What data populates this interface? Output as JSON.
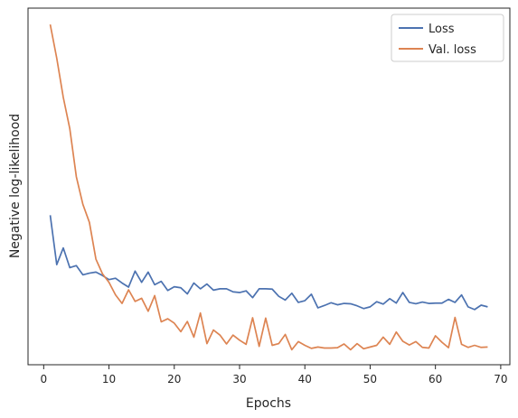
{
  "chart_data": {
    "type": "line",
    "xlabel": "Epochs",
    "ylabel": "Negative log-likelihood",
    "xlim": [
      -2.4,
      71.4
    ],
    "ylim": [
      0,
      1
    ],
    "x_ticks": [
      0,
      10,
      20,
      30,
      40,
      50,
      60,
      70
    ],
    "x_tick_labels": [
      "0",
      "10",
      "20",
      "30",
      "40",
      "50",
      "60",
      "70"
    ],
    "y_ticks_labeled": false,
    "grid": false,
    "legend_position": "top-right",
    "series": [
      {
        "name": "Loss",
        "color": "#4c72b0",
        "x": [
          1,
          2,
          3,
          4,
          5,
          6,
          7,
          8,
          9,
          10,
          11,
          12,
          13,
          14,
          15,
          16,
          17,
          18,
          19,
          20,
          21,
          22,
          23,
          24,
          25,
          26,
          27,
          28,
          29,
          30,
          31,
          32,
          33,
          34,
          35,
          36,
          37,
          38,
          39,
          40,
          41,
          42,
          43,
          44,
          45,
          46,
          47,
          48,
          49,
          50,
          51,
          52,
          53,
          54,
          55,
          56,
          57,
          58,
          59,
          60,
          61,
          62,
          63,
          64,
          65,
          66,
          67,
          68
        ],
        "values": [
          0.439,
          0.294,
          0.343,
          0.285,
          0.291,
          0.264,
          0.269,
          0.272,
          0.262,
          0.25,
          0.254,
          0.24,
          0.228,
          0.275,
          0.242,
          0.272,
          0.235,
          0.245,
          0.218,
          0.229,
          0.226,
          0.208,
          0.24,
          0.223,
          0.237,
          0.219,
          0.223,
          0.223,
          0.214,
          0.212,
          0.217,
          0.197,
          0.223,
          0.223,
          0.222,
          0.201,
          0.19,
          0.21,
          0.183,
          0.188,
          0.207,
          0.167,
          0.174,
          0.182,
          0.176,
          0.18,
          0.179,
          0.173,
          0.165,
          0.17,
          0.185,
          0.178,
          0.194,
          0.181,
          0.212,
          0.183,
          0.179,
          0.184,
          0.18,
          0.181,
          0.181,
          0.192,
          0.183,
          0.205,
          0.17,
          0.162,
          0.175,
          0.17
        ]
      },
      {
        "name": "Val. loss",
        "color": "#dd8452",
        "x": [
          1,
          2,
          3,
          4,
          5,
          6,
          7,
          8,
          9,
          10,
          11,
          12,
          13,
          14,
          15,
          16,
          17,
          18,
          19,
          20,
          21,
          22,
          23,
          24,
          25,
          26,
          27,
          28,
          29,
          30,
          31,
          32,
          33,
          34,
          35,
          36,
          37,
          38,
          39,
          40,
          41,
          42,
          43,
          44,
          45,
          46,
          47,
          48,
          49,
          50,
          51,
          52,
          53,
          54,
          55,
          56,
          57,
          58,
          59,
          60,
          61,
          62,
          63,
          64,
          65,
          66,
          67,
          68
        ],
        "values": [
          0.999,
          0.9,
          0.785,
          0.693,
          0.552,
          0.471,
          0.418,
          0.31,
          0.267,
          0.242,
          0.205,
          0.18,
          0.22,
          0.186,
          0.195,
          0.157,
          0.203,
          0.126,
          0.135,
          0.122,
          0.097,
          0.127,
          0.081,
          0.152,
          0.062,
          0.102,
          0.087,
          0.061,
          0.087,
          0.072,
          0.06,
          0.138,
          0.054,
          0.137,
          0.057,
          0.062,
          0.089,
          0.044,
          0.068,
          0.057,
          0.048,
          0.052,
          0.049,
          0.049,
          0.05,
          0.061,
          0.044,
          0.062,
          0.047,
          0.052,
          0.057,
          0.081,
          0.06,
          0.096,
          0.069,
          0.058,
          0.068,
          0.051,
          0.049,
          0.085,
          0.066,
          0.05,
          0.139,
          0.06,
          0.051,
          0.057,
          0.051,
          0.052
        ]
      }
    ]
  }
}
